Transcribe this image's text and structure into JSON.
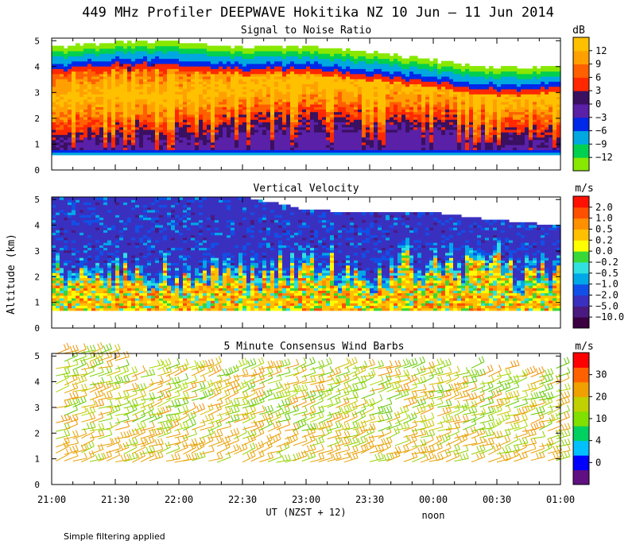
{
  "header": {
    "title": "449 MHz Profiler DEEPWAVE Hokitika NZ 10 Jun – 11 Jun 2014"
  },
  "footer": {
    "note": "Simple filtering applied",
    "xlabel": "UT  (NZST + 12)",
    "noon_label": "noon"
  },
  "shared": {
    "ylabel": "Altitude (km)",
    "x_ticks": [
      "21:00",
      "21:30",
      "22:00",
      "22:30",
      "23:00",
      "23:30",
      "00:00",
      "00:30",
      "01:00"
    ],
    "x_range_minutes": [
      0,
      240
    ],
    "y_ticks": [
      0,
      1,
      2,
      3,
      4,
      5
    ],
    "y_range_km": [
      0,
      5.1
    ]
  },
  "chart_data": [
    {
      "type": "heatmap",
      "title": "Signal to Noise Ratio",
      "units": "dB",
      "colorbar": {
        "colors": [
          "#88e800",
          "#00d050",
          "#00a8e0",
          "#0028e8",
          "#5a20a8",
          "#3a1060",
          "#ff2800",
          "#ff6000",
          "#ffa000",
          "#ffc000"
        ],
        "tick_labels": [
          "12",
          "9",
          "6",
          "3",
          "0",
          "−3",
          "−6",
          "−9",
          "−12"
        ]
      },
      "top_height_km_by_time": [
        [
          0,
          4.7
        ],
        [
          30,
          4.9
        ],
        [
          60,
          4.9
        ],
        [
          90,
          4.7
        ],
        [
          120,
          4.75
        ],
        [
          150,
          4.5
        ],
        [
          180,
          4.2
        ],
        [
          210,
          3.9
        ],
        [
          240,
          4.0
        ]
      ],
      "peak_layer_km_by_time": [
        [
          0,
          2.8
        ],
        [
          60,
          3.0
        ],
        [
          120,
          3.4
        ],
        [
          180,
          3.3
        ],
        [
          240,
          2.8
        ]
      ]
    },
    {
      "type": "heatmap",
      "title": "Vertical Velocity",
      "units": "m/s",
      "colorbar": {
        "colors": [
          "#3a0040",
          "#4a1a80",
          "#3a30c0",
          "#1050e8",
          "#00a8e8",
          "#30e0e0",
          "#38d838",
          "#ffff00",
          "#ffc000",
          "#ff9000",
          "#ff5000",
          "#ff1000"
        ],
        "tick_labels": [
          "2.0",
          "1.0",
          "0.5",
          "0.2",
          "0.0",
          "−0.2",
          "−0.5",
          "−1.0",
          "−2.0",
          "−5.0",
          "−10.0"
        ]
      },
      "top_height_km_by_time": [
        [
          0,
          5.1
        ],
        [
          90,
          5.1
        ],
        [
          110,
          4.8
        ],
        [
          120,
          4.6
        ],
        [
          150,
          4.5
        ],
        [
          180,
          4.5
        ],
        [
          210,
          4.2
        ],
        [
          240,
          4.0
        ]
      ]
    },
    {
      "type": "scatter",
      "title": "5 Minute Consensus Wind Barbs",
      "units": "m/s",
      "colorbar": {
        "colors": [
          "#601080",
          "#0000ff",
          "#00c0ff",
          "#00d060",
          "#80e000",
          "#c0d000",
          "#f0a000",
          "#ff6000",
          "#ff0000"
        ],
        "tick_labels": [
          "30",
          "20",
          "10",
          "4",
          "0"
        ]
      },
      "barb_levels_km": [
        0.9,
        1.2,
        1.5,
        1.8,
        2.1,
        2.4,
        2.7,
        3.0,
        3.3,
        3.6,
        3.9,
        4.2,
        4.5,
        4.8,
        5.1
      ],
      "speed_range_ms": [
        0,
        35
      ]
    }
  ]
}
